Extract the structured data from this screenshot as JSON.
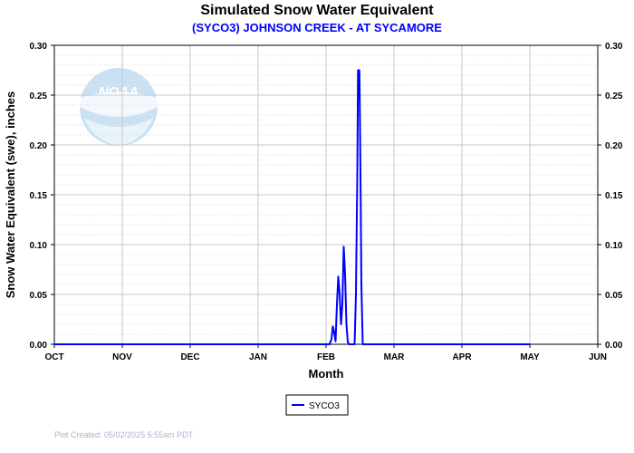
{
  "chart_data": {
    "type": "line",
    "title": "Simulated Snow Water Equivalent",
    "subtitle": "(SYCO3) JOHNSON CREEK - AT SYCAMORE",
    "xlabel": "Month",
    "ylabel": "Snow Water Equivalent (swe),  inches",
    "ylim": [
      0,
      0.3
    ],
    "y_ticks": [
      "0.00",
      "0.05",
      "0.10",
      "0.15",
      "0.20",
      "0.25",
      "0.30"
    ],
    "x_ticks": [
      "OCT",
      "NOV",
      "DEC",
      "JAN",
      "FEB",
      "MAR",
      "APR",
      "MAY",
      "JUN"
    ],
    "grid": true,
    "legend_position": "bottom-center",
    "series": [
      {
        "name": "SYCO3",
        "color": "#0000ff",
        "points": [
          {
            "month": 0,
            "swe": 0.0
          },
          {
            "month": 4.05,
            "swe": 0.0
          },
          {
            "month": 4.08,
            "swe": 0.005
          },
          {
            "month": 4.1,
            "swe": 0.018
          },
          {
            "month": 4.12,
            "swe": 0.012
          },
          {
            "month": 4.14,
            "swe": 0.003
          },
          {
            "month": 4.16,
            "swe": 0.04
          },
          {
            "month": 4.18,
            "swe": 0.068
          },
          {
            "month": 4.2,
            "swe": 0.05
          },
          {
            "month": 4.22,
            "swe": 0.02
          },
          {
            "month": 4.24,
            "swe": 0.04
          },
          {
            "month": 4.26,
            "swe": 0.098
          },
          {
            "month": 4.28,
            "swe": 0.07
          },
          {
            "month": 4.3,
            "swe": 0.02
          },
          {
            "month": 4.32,
            "swe": 0.002
          },
          {
            "month": 4.34,
            "swe": 0.0
          },
          {
            "month": 4.42,
            "swe": 0.0
          },
          {
            "month": 4.44,
            "swe": 0.05
          },
          {
            "month": 4.46,
            "swe": 0.17
          },
          {
            "month": 4.47,
            "swe": 0.275
          },
          {
            "month": 4.49,
            "swe": 0.275
          },
          {
            "month": 4.5,
            "swe": 0.22
          },
          {
            "month": 4.51,
            "swe": 0.14
          },
          {
            "month": 4.52,
            "swe": 0.06
          },
          {
            "month": 4.54,
            "swe": 0.0
          },
          {
            "month": 7.0,
            "swe": 0.0
          }
        ]
      }
    ]
  },
  "watermark": {
    "text": "NOAA",
    "icon": "noaa-logo-icon",
    "color": "#7fb6e0"
  },
  "footer": {
    "plot_created": "Plot Created:  05/02/2025  5:55am  PDT"
  }
}
